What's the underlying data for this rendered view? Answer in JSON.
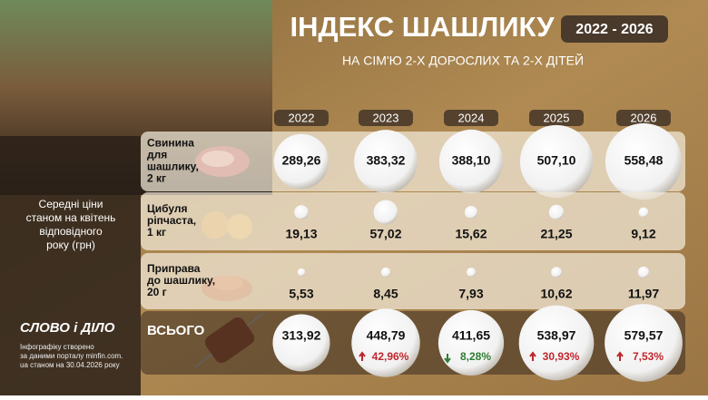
{
  "header": {
    "title": "ІНДЕКС ШАШЛИКУ",
    "period": "2022 - 2026",
    "subtitle": "НА СІМ'Ю 2-Х ДОРОСЛИХ ТА 2-Х ДІТЕЙ"
  },
  "side_note": [
    "Середні ціни",
    "станом на квітень",
    "відповідного",
    "року (грн)"
  ],
  "table": {
    "years": [
      "2022",
      "2023",
      "2024",
      "2025",
      "2026"
    ],
    "rows": [
      {
        "label": [
          "Свинина",
          "для",
          "шашлику,",
          "2 кг"
        ],
        "values": [
          "289,26",
          "383,32",
          "388,10",
          "507,10",
          "558,48"
        ]
      },
      {
        "label": [
          "Цибуля",
          "ріпчаста,",
          "1 кг"
        ],
        "values": [
          "19,13",
          "57,02",
          "15,62",
          "21,25",
          "9,12"
        ]
      },
      {
        "label": [
          "Приправа",
          "до шашлику,",
          "20 г"
        ],
        "values": [
          "5,53",
          "8,45",
          "7,93",
          "10,62",
          "11,97"
        ]
      }
    ],
    "total": {
      "label": "ВСЬОГО",
      "values": [
        "313,92",
        "448,79",
        "411,65",
        "538,97",
        "579,57"
      ],
      "changes": [
        null,
        "42,96%",
        "8,28%",
        "30,93%",
        "7,53%"
      ]
    }
  },
  "footer": {
    "logo": "СЛОВО і ДІЛО",
    "credits": [
      "Інфографіку створено",
      "за даними порталу minfin.com.",
      "ua станом на 30.04.2026 року"
    ]
  }
}
